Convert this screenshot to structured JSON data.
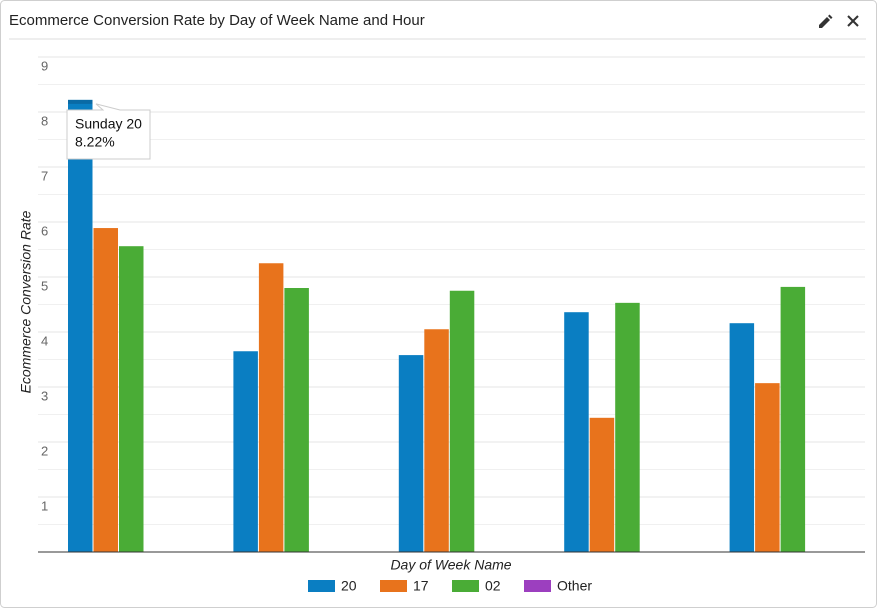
{
  "chart_data": {
    "type": "bar",
    "title": "Ecommerce Conversion Rate by Day of Week Name and Hour",
    "x_label": "Day of Week Name",
    "y_label": "Ecommerce Conversion Rate",
    "categories": [
      null,
      null,
      null,
      null,
      null
    ],
    "series": [
      {
        "name": "20",
        "color": "#0a7ec2",
        "values": [
          8.22,
          3.65,
          3.58,
          4.36,
          4.16
        ]
      },
      {
        "name": "17",
        "color": "#e8731c",
        "values": [
          5.89,
          5.25,
          4.05,
          2.44,
          3.07
        ]
      },
      {
        "name": "02",
        "color": "#4aac36",
        "values": [
          5.56,
          4.8,
          4.75,
          4.53,
          4.82
        ]
      },
      {
        "name": "Other",
        "color": "#9c3fbf",
        "values": [
          null,
          null,
          null,
          null,
          null
        ]
      }
    ],
    "ylim": [
      0,
      9
    ],
    "yticks": [
      1,
      2,
      3,
      4,
      5,
      6,
      7,
      8,
      9
    ],
    "minor_yticks": [
      0.5,
      1.5,
      2.5,
      3.5,
      4.5,
      5.5,
      6.5,
      7.5,
      8.5
    ],
    "grid": true,
    "legend": "bottom",
    "tooltip": {
      "title": "Sunday 20",
      "value": "8.22%"
    }
  }
}
